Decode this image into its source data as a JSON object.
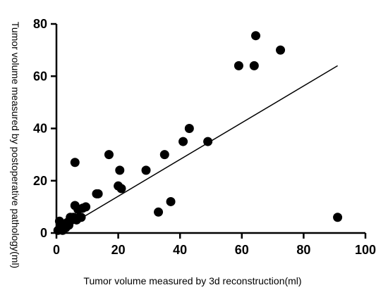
{
  "chart_data": {
    "type": "scatter",
    "title": "",
    "xlabel": "Tumor volume measured by 3d reconstruction(ml)",
    "ylabel": "Tumor volume measured by postoperative pathology(ml)",
    "xlim": [
      0,
      100
    ],
    "ylim": [
      0,
      80
    ],
    "xticks": [
      "0",
      "20",
      "40",
      "60",
      "80",
      "100"
    ],
    "yticks": [
      "0",
      "20",
      "40",
      "60",
      "80"
    ],
    "grid": false,
    "legend": "none",
    "series": [
      {
        "values": [
          {
            "x": 0.5,
            "y": 1
          },
          {
            "x": 1,
            "y": 4.5
          },
          {
            "x": 1.5,
            "y": 2
          },
          {
            "x": 2,
            "y": 1
          },
          {
            "x": 2.5,
            "y": 3
          },
          {
            "x": 3,
            "y": 2
          },
          {
            "x": 3.5,
            "y": 4
          },
          {
            "x": 4,
            "y": 3
          },
          {
            "x": 4.5,
            "y": 6
          },
          {
            "x": 5,
            "y": 5
          },
          {
            "x": 5.5,
            "y": 6
          },
          {
            "x": 6,
            "y": 27
          },
          {
            "x": 6,
            "y": 10.5
          },
          {
            "x": 6.5,
            "y": 5
          },
          {
            "x": 7,
            "y": 9
          },
          {
            "x": 7.5,
            "y": 6
          },
          {
            "x": 8,
            "y": 6
          },
          {
            "x": 8.5,
            "y": 9.5
          },
          {
            "x": 9.5,
            "y": 10
          },
          {
            "x": 13,
            "y": 15
          },
          {
            "x": 13.5,
            "y": 15
          },
          {
            "x": 17,
            "y": 30
          },
          {
            "x": 20,
            "y": 18
          },
          {
            "x": 20.5,
            "y": 24
          },
          {
            "x": 21,
            "y": 17
          },
          {
            "x": 29,
            "y": 24
          },
          {
            "x": 33,
            "y": 8
          },
          {
            "x": 35,
            "y": 30
          },
          {
            "x": 37,
            "y": 12
          },
          {
            "x": 41,
            "y": 35
          },
          {
            "x": 43,
            "y": 40
          },
          {
            "x": 49,
            "y": 35
          },
          {
            "x": 59,
            "y": 64
          },
          {
            "x": 64,
            "y": 64
          },
          {
            "x": 64.5,
            "y": 75.5
          },
          {
            "x": 72.5,
            "y": 70
          },
          {
            "x": 91,
            "y": 6
          }
        ],
        "color": "#000000"
      }
    ],
    "fit_line": {
      "x": [
        0,
        91
      ],
      "y": [
        0,
        64
      ],
      "color": "#000000"
    }
  }
}
